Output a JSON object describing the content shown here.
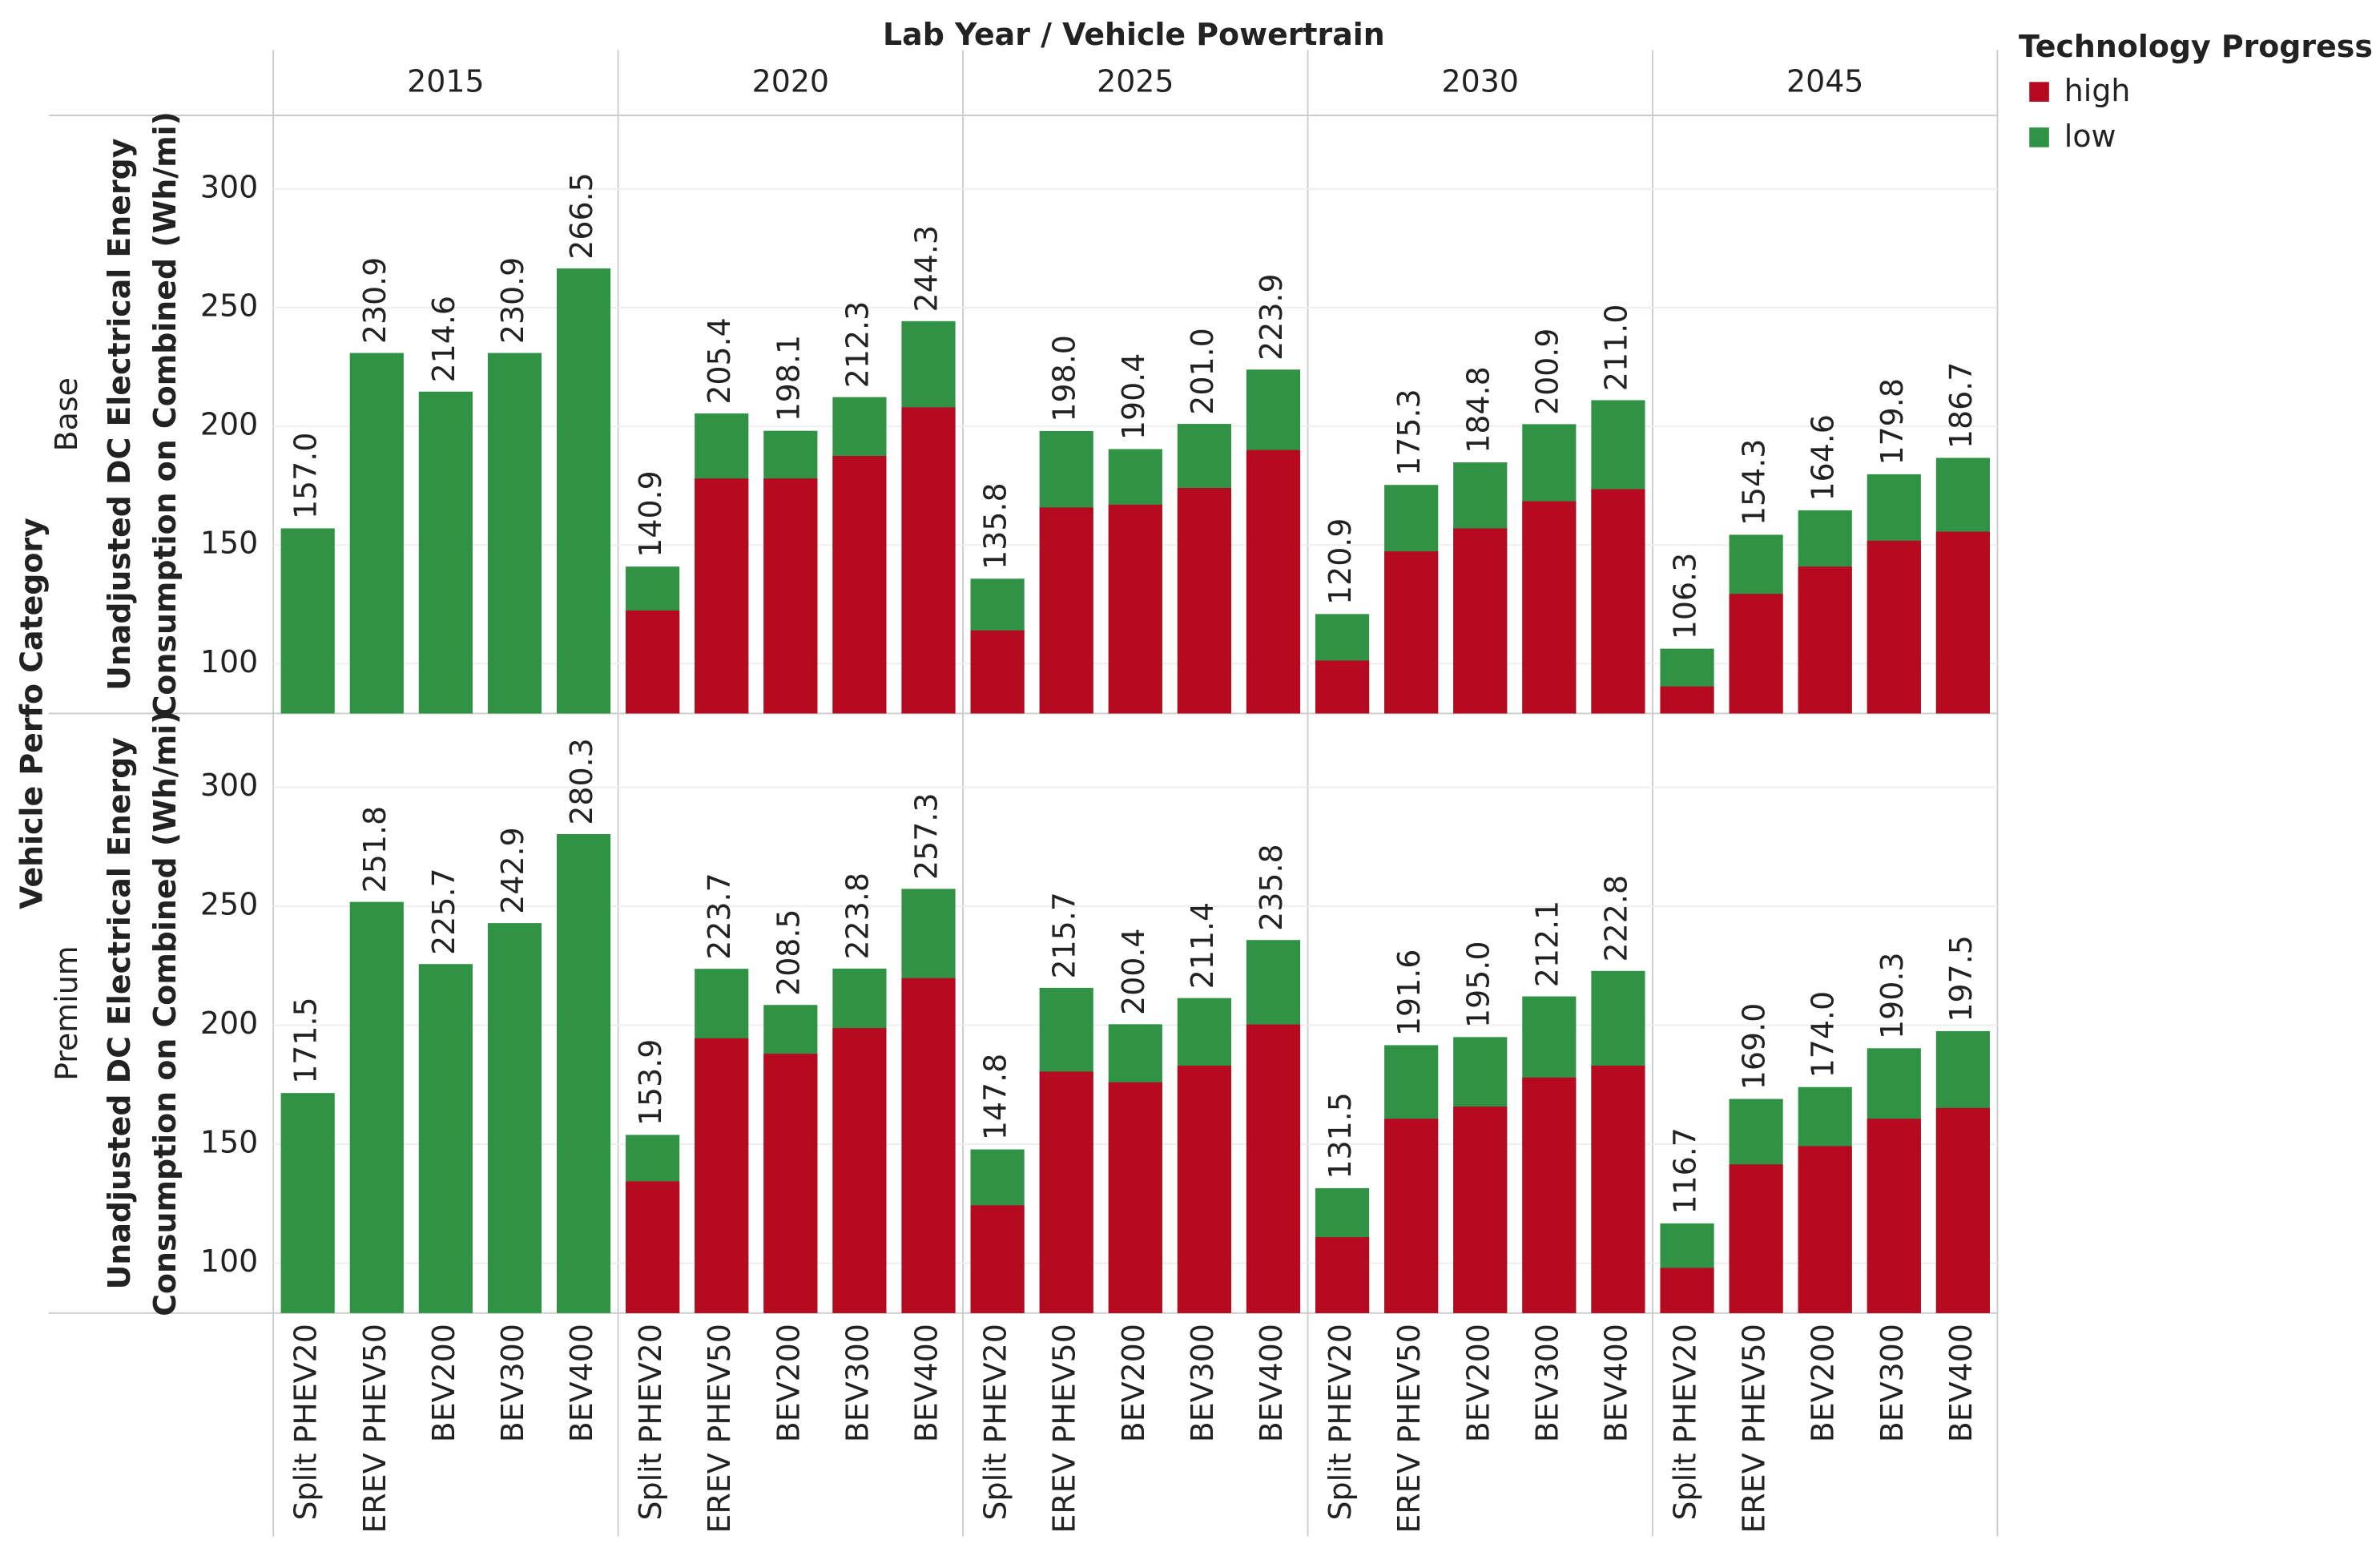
{
  "chart_data": {
    "type": "bar",
    "column_title": "Lab Year  /  Vehicle Powertrain",
    "row_title": "Vehicle Perfo Category",
    "y_label": [
      "Unadjusted DC Electrical Energy",
      "Consumption on Combined (Wh/mi)"
    ],
    "legend_title": "Technology Progress",
    "columns": [
      "2015",
      "2020",
      "2025",
      "2030",
      "2045"
    ],
    "rows": [
      "Base",
      "Premium"
    ],
    "categories": [
      "Split PHEV20",
      "EREV PHEV50",
      "BEV200",
      "BEV300",
      "BEV400"
    ],
    "ylim": [
      79,
      331
    ],
    "yticks": [
      100,
      150,
      200,
      250,
      300
    ],
    "grid": true,
    "series": [
      {
        "name": "high",
        "color": "#b50a20",
        "values": [
          [
            [
              null,
              null,
              null,
              null,
              null
            ],
            [
              122.4,
              178,
              178,
              187.5,
              208
            ],
            [
              114,
              165.8,
              167,
              174,
              190
            ],
            [
              101.3,
              147.3,
              157,
              168.4,
              173.5
            ],
            [
              90.4,
              129.4,
              140.9,
              151.8,
              155.6
            ]
          ],
          [
            [
              null,
              null,
              null,
              null,
              null
            ],
            [
              134.4,
              194.5,
              188,
              198.8,
              219.8
            ],
            [
              124.3,
              180.5,
              176,
              183,
              200.3
            ],
            [
              110.9,
              160.7,
              165.8,
              178,
              183
            ],
            [
              98,
              141.5,
              149.2,
              160.7,
              165.2
            ]
          ]
        ]
      },
      {
        "name": "low",
        "color": "#2f9244",
        "values": [
          [
            [
              157,
              230.9,
              214.6,
              230.9,
              266.5
            ],
            [
              140.9,
              205.4,
              198.1,
              212.3,
              244.3
            ],
            [
              135.8,
              198,
              190.4,
              201,
              223.9
            ],
            [
              120.9,
              175.3,
              184.8,
              200.9,
              211
            ],
            [
              106.3,
              154.3,
              164.6,
              179.8,
              186.7
            ]
          ],
          [
            [
              171.5,
              251.8,
              225.7,
              242.9,
              280.3
            ],
            [
              153.9,
              223.7,
              208.5,
              223.8,
              257.3
            ],
            [
              147.8,
              215.7,
              200.4,
              211.4,
              235.8
            ],
            [
              131.5,
              191.6,
              195,
              212.1,
              222.8
            ],
            [
              116.7,
              169,
              174,
              190.3,
              197.5
            ]
          ]
        ],
        "value_labels": [
          [
            [
              "157.0",
              "230.9",
              "214.6",
              "230.9",
              "266.5"
            ],
            [
              "140.9",
              "205.4",
              "198.1",
              "212.3",
              "244.3"
            ],
            [
              "135.8",
              "198.0",
              "190.4",
              "201.0",
              "223.9"
            ],
            [
              "120.9",
              "175.3",
              "184.8",
              "200.9",
              "211.0"
            ],
            [
              "106.3",
              "154.3",
              "164.6",
              "179.8",
              "186.7"
            ]
          ],
          [
            [
              "171.5",
              "251.8",
              "225.7",
              "242.9",
              "280.3"
            ],
            [
              "153.9",
              "223.7",
              "208.5",
              "223.8",
              "257.3"
            ],
            [
              "147.8",
              "215.7",
              "200.4",
              "211.4",
              "235.8"
            ],
            [
              "131.5",
              "191.6",
              "195.0",
              "212.1",
              "222.8"
            ],
            [
              "116.7",
              "169.0",
              "174.0",
              "190.3",
              "197.5"
            ]
          ]
        ]
      }
    ]
  }
}
